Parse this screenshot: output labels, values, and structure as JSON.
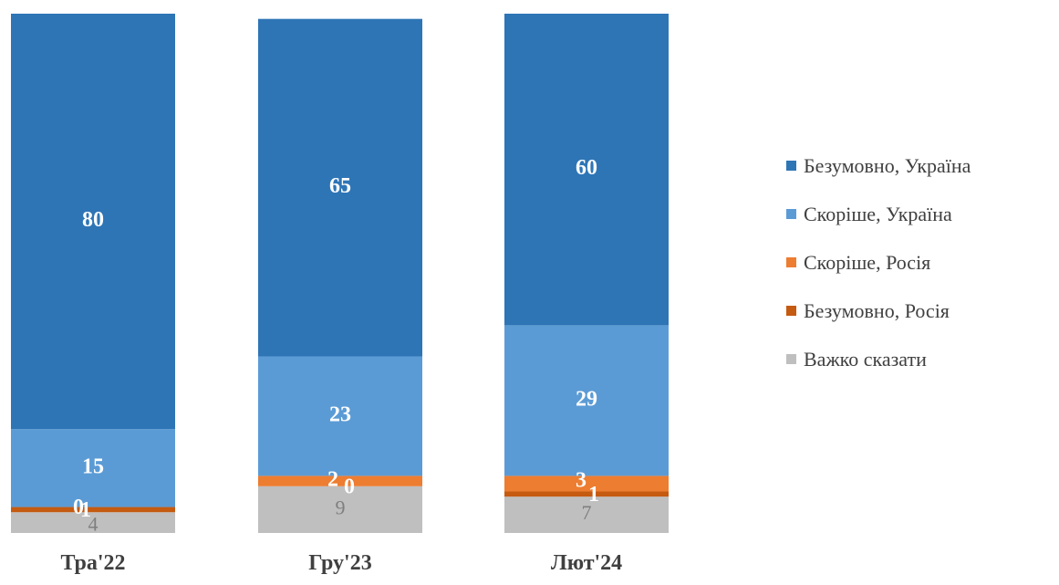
{
  "chart_data": {
    "type": "stacked-bar",
    "categories": [
      "Тра'22",
      "Гру'23",
      "Лют'24"
    ],
    "series": [
      {
        "name": "Важко сказати",
        "color": "#bfbfbf",
        "label_color": "#7f7f7f",
        "values": [
          4,
          9,
          7
        ]
      },
      {
        "name": "Безумовно, Росія",
        "color": "#c55a11",
        "label_color": "#ffffff",
        "values": [
          1,
          0,
          1
        ]
      },
      {
        "name": "Скоріше, Росія",
        "color": "#ed7d31",
        "label_color": "#ffffff",
        "values": [
          0,
          2,
          3
        ]
      },
      {
        "name": "Скоріше, Україна",
        "color": "#5b9bd5",
        "label_color": "#ffffff",
        "values": [
          15,
          23,
          29
        ]
      },
      {
        "name": "Безумовно, Україна",
        "color": "#2e75b6",
        "label_color": "#ffffff",
        "values": [
          80,
          65,
          60
        ]
      }
    ],
    "legend_order": [
      "Безумовно, Україна",
      "Скоріше, Україна",
      "Скоріше, Росія",
      "Безумовно, Росія",
      "Важко сказати"
    ],
    "ylim": [
      0,
      100
    ],
    "legend_position": "right",
    "grid": false
  }
}
